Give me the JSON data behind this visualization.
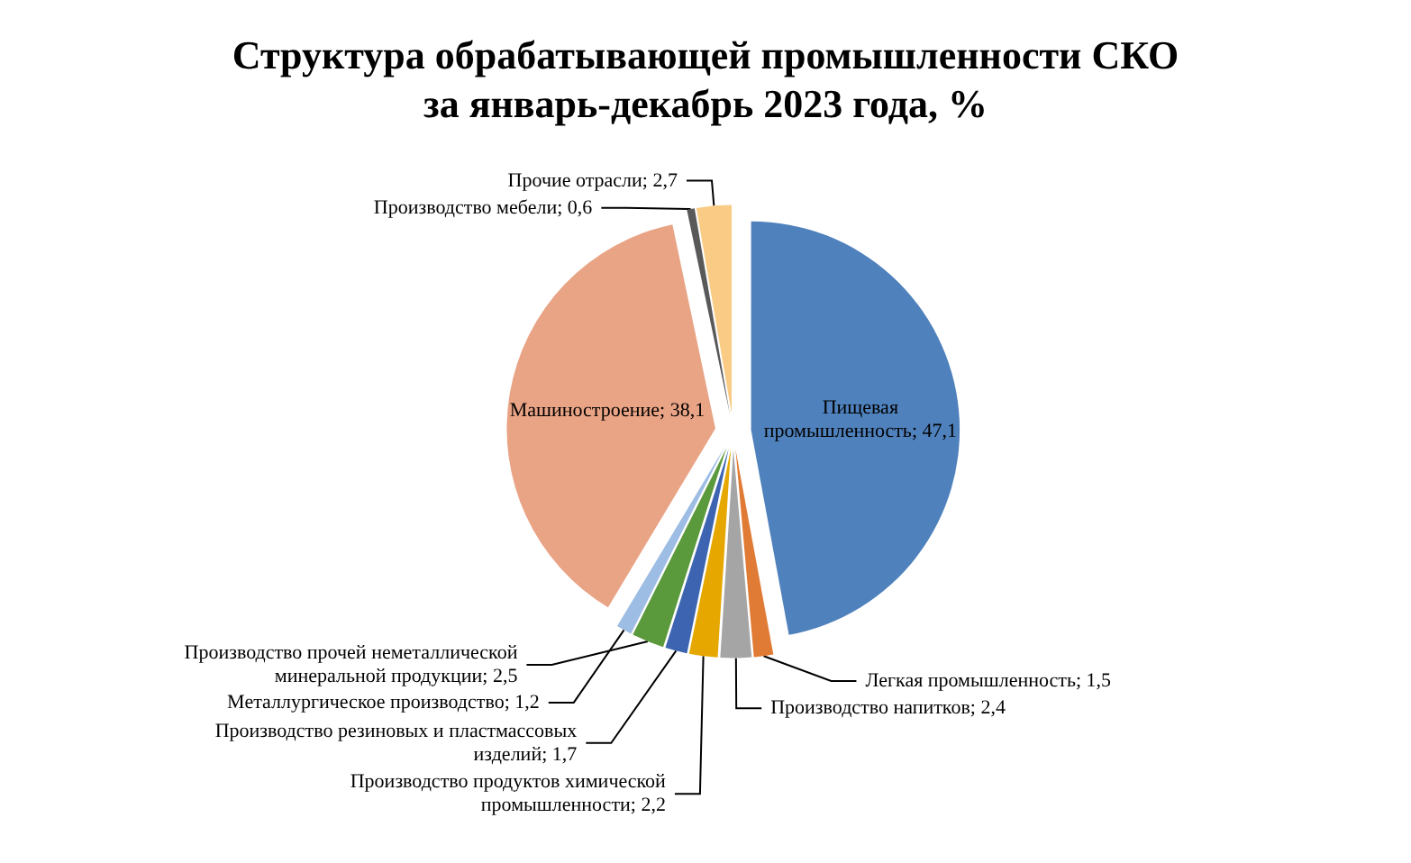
{
  "chart_data": {
    "type": "pie",
    "title": "Структура обрабатывающей промышленности СКО\nза январь-декабрь 2023 года, %",
    "categories": [
      "Пищевая промышленность",
      "Легкая промышленность",
      "Производство напитков",
      "Производство продуктов химической промышленности",
      "Производство резиновых и пластмассовых изделий",
      "Производство прочей неметаллической минеральной продукции",
      "Металлургическое производство",
      "Машиностроение",
      "Производство мебели",
      "Прочие отрасли"
    ],
    "values": [
      47.1,
      1.5,
      2.4,
      2.2,
      1.7,
      2.5,
      1.2,
      38.1,
      0.6,
      2.7
    ],
    "value_labels": [
      "47,1",
      "1,5",
      "2,4",
      "2,2",
      "1,7",
      "2,5",
      "1,2",
      "38,1",
      "0,6",
      "2,7"
    ],
    "colors": [
      "#4f81bd",
      "#e07b35",
      "#a5a5a5",
      "#e6a800",
      "#3d64b0",
      "#5b9a3c",
      "#9dbde5",
      "#e9a385",
      "#595959",
      "#f9cb84"
    ]
  }
}
